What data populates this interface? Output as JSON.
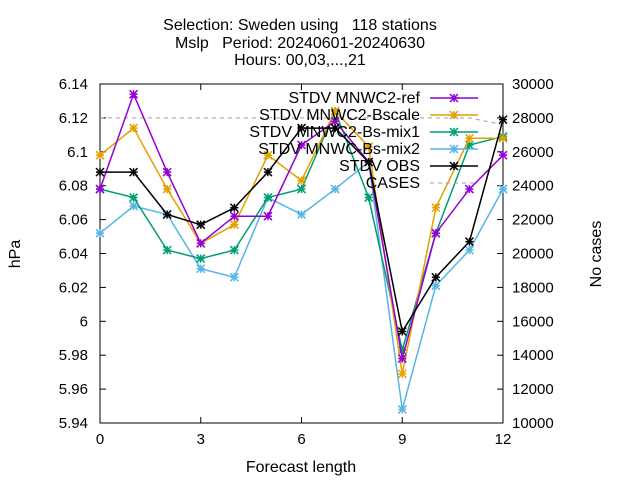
{
  "chart_data": {
    "type": "line",
    "title_lines": [
      "Selection: Sweden using   118 stations",
      "Mslp   Period: 20240601-20240630",
      "Hours: 00,03,...,21"
    ],
    "xlabel": "Forecast length",
    "ylabel": "hPa",
    "y2label": "No cases",
    "xlim": [
      0,
      12
    ],
    "ylim": [
      5.94,
      6.14
    ],
    "y2lim": [
      10000,
      30000
    ],
    "xticks": [
      "0",
      "3",
      "6",
      "9",
      "12"
    ],
    "yticks": [
      "5.94",
      "5.96",
      "5.98",
      "6",
      "6.02",
      "6.04",
      "6.06",
      "6.08",
      "6.1",
      "6.12",
      "6.14"
    ],
    "y2ticks": [
      "10000",
      "12000",
      "14000",
      "16000",
      "18000",
      "20000",
      "22000",
      "24000",
      "26000",
      "28000",
      "30000"
    ],
    "legend_position": "top-right",
    "x": [
      0,
      1,
      2,
      3,
      4,
      5,
      6,
      7,
      8,
      9,
      10,
      11,
      12
    ],
    "series": [
      {
        "name": "STDV MNWC2-ref",
        "color": "#9400d3",
        "axis": "y",
        "values": [
          6.078,
          6.134,
          6.088,
          6.046,
          6.062,
          6.062,
          6.104,
          6.118,
          6.094,
          5.978,
          6.052,
          6.078,
          6.098
        ]
      },
      {
        "name": "STDV MNWC2-Bscale",
        "color": "#e69f00",
        "axis": "y",
        "values": [
          6.098,
          6.114,
          6.078,
          6.046,
          6.057,
          6.098,
          6.083,
          6.124,
          6.103,
          5.969,
          6.067,
          6.108,
          6.108
        ]
      },
      {
        "name": "STDV MNWC2-Bs-mix1",
        "color": "#009e73",
        "axis": "y",
        "values": [
          6.078,
          6.073,
          6.042,
          6.037,
          6.042,
          6.073,
          6.078,
          6.124,
          6.073,
          5.983,
          6.052,
          6.104,
          6.109
        ]
      },
      {
        "name": "STDV MNWC-Bs-mix2",
        "color": "#56b4e9",
        "axis": "y",
        "values": [
          6.052,
          6.068,
          6.063,
          6.031,
          6.026,
          6.073,
          6.063,
          6.078,
          6.094,
          5.948,
          6.021,
          6.042,
          6.078
        ]
      },
      {
        "name": "STDV OBS",
        "color": "#000000",
        "axis": "y",
        "values": [
          6.088,
          6.088,
          6.063,
          6.057,
          6.067,
          6.088,
          6.114,
          6.114,
          6.094,
          5.994,
          6.026,
          6.047,
          6.119
        ]
      },
      {
        "name": "CASES",
        "color": "#a0a0a0",
        "axis": "y2",
        "dashed": true,
        "values": [
          28000,
          28000,
          28000,
          28000,
          28000,
          28000,
          28000,
          28000,
          28000,
          28000,
          28000,
          28000,
          27600
        ]
      }
    ]
  }
}
